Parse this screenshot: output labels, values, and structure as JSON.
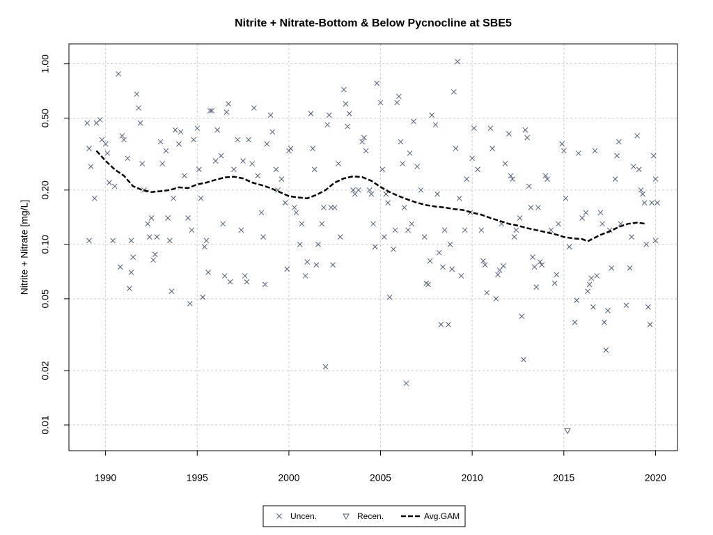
{
  "chart_data": {
    "type": "scatter",
    "title": "Nitrite + Nitrate-Bottom & Below Pycnocline at SBE5",
    "ylabel": "Nitrite + Nitrate [mg/L]",
    "xlim": [
      1988,
      2021.2
    ],
    "ylim": [
      0.0072,
      1.29
    ],
    "ylog": true,
    "grid": true,
    "legend": "bottom",
    "xticks": [
      1990,
      1995,
      2000,
      2005,
      2010,
      2015,
      2020
    ],
    "yticks": [
      0.01,
      0.02,
      0.05,
      {
        "value": 0.1,
        "label": "0.10"
      },
      {
        "value": 0.2,
        "label": "0.20"
      },
      {
        "value": 0.5,
        "label": "0.50"
      },
      {
        "value": 1,
        "label": "1.00"
      }
    ],
    "series": [
      {
        "name": "Uncen.",
        "marker": "x",
        "color": "#4f5b7a",
        "x": [
          1989.0,
          1989.1,
          1989.2,
          1989.1,
          1989.4,
          1989.5,
          1989.7,
          1989.8,
          1990.0,
          1990.1,
          1990.2,
          1990.4,
          1990.5,
          1990.7,
          1990.8,
          1990.9,
          1991.0,
          1991.2,
          1991.3,
          1991.4,
          1991.4,
          1991.5,
          1991.7,
          1991.8,
          1991.9,
          1992.0,
          1992.1,
          1992.3,
          1992.4,
          1992.5,
          1992.6,
          1992.7,
          1992.8,
          1993.0,
          1993.1,
          1993.3,
          1993.4,
          1993.5,
          1993.6,
          1993.7,
          1993.8,
          1994.0,
          1994.1,
          1994.3,
          1994.5,
          1994.6,
          1994.7,
          1994.8,
          1995.0,
          1995.1,
          1995.2,
          1995.3,
          1995.4,
          1995.5,
          1995.6,
          1995.7,
          1995.8,
          1996.0,
          1996.1,
          1996.3,
          1996.4,
          1996.5,
          1996.6,
          1996.7,
          1996.8,
          1997.0,
          1997.2,
          1997.4,
          1997.5,
          1997.6,
          1997.7,
          1997.8,
          1998.0,
          1998.1,
          1998.3,
          1998.5,
          1998.6,
          1998.7,
          1998.8,
          1999.0,
          1999.1,
          1999.3,
          1999.4,
          1999.6,
          1999.8,
          1999.9,
          2000.0,
          2000.1,
          2000.3,
          2000.4,
          2000.6,
          2000.7,
          2000.9,
          2001.0,
          2001.2,
          2001.3,
          2001.4,
          2001.5,
          2001.6,
          2001.8,
          2001.9,
          2002.0,
          2002.1,
          2002.2,
          2002.3,
          2002.4,
          2002.5,
          2002.7,
          2002.8,
          2003.0,
          2003.1,
          2003.2,
          2003.3,
          2003.5,
          2003.6,
          2003.8,
          2004.0,
          2004.1,
          2004.2,
          2004.4,
          2004.5,
          2004.6,
          2004.7,
          2004.8,
          2005.0,
          2005.1,
          2005.2,
          2005.3,
          2005.4,
          2005.5,
          2005.7,
          2005.8,
          2005.9,
          2006.0,
          2006.1,
          2006.2,
          2006.3,
          2006.4,
          2006.5,
          2006.6,
          2006.7,
          2006.8,
          2007.0,
          2007.2,
          2007.4,
          2007.5,
          2007.6,
          2007.7,
          2007.8,
          2008.0,
          2008.1,
          2008.2,
          2008.3,
          2008.4,
          2008.5,
          2008.7,
          2008.8,
          2008.9,
          2009.0,
          2009.1,
          2009.2,
          2009.3,
          2009.4,
          2009.6,
          2009.7,
          2009.9,
          2010.0,
          2010.1,
          2010.3,
          2010.5,
          2010.6,
          2010.7,
          2010.8,
          2011.0,
          2011.1,
          2011.3,
          2011.4,
          2011.5,
          2011.6,
          2011.7,
          2011.8,
          2012.0,
          2012.1,
          2012.2,
          2012.3,
          2012.4,
          2012.6,
          2012.7,
          2012.8,
          2012.9,
          2013.0,
          2013.1,
          2013.2,
          2013.3,
          2013.4,
          2013.5,
          2013.6,
          2013.7,
          2013.8,
          2014.0,
          2014.1,
          2014.3,
          2014.5,
          2014.6,
          2014.7,
          2014.9,
          2015.0,
          2015.1,
          2015.3,
          2015.6,
          2015.7,
          2015.8,
          2016.0,
          2016.2,
          2016.3,
          2016.4,
          2016.5,
          2016.6,
          2016.7,
          2016.8,
          2017.0,
          2017.1,
          2017.2,
          2017.3,
          2017.4,
          2017.5,
          2017.6,
          2017.8,
          2017.9,
          2018.0,
          2018.1,
          2018.4,
          2018.6,
          2018.7,
          2018.8,
          2019.0,
          2019.1,
          2019.2,
          2019.3,
          2019.4,
          2019.5,
          2019.6,
          2019.7,
          2019.8,
          2019.9,
          2020.0,
          2020.1,
          2020.0
        ],
        "values": [
          0.47,
          0.34,
          0.27,
          0.105,
          0.18,
          0.47,
          0.49,
          0.38,
          0.36,
          0.32,
          0.22,
          0.105,
          0.21,
          0.88,
          0.075,
          0.4,
          0.38,
          0.3,
          0.057,
          0.07,
          0.105,
          0.085,
          0.68,
          0.57,
          0.47,
          0.28,
          0.2,
          0.13,
          0.11,
          0.14,
          0.082,
          0.088,
          0.11,
          0.37,
          0.28,
          0.33,
          0.14,
          0.105,
          0.055,
          0.18,
          0.43,
          0.36,
          0.42,
          0.24,
          0.14,
          0.047,
          0.12,
          0.38,
          0.44,
          0.26,
          0.18,
          0.051,
          0.097,
          0.105,
          0.07,
          0.55,
          0.55,
          0.29,
          0.43,
          0.31,
          0.13,
          0.067,
          0.54,
          0.6,
          0.062,
          0.26,
          0.38,
          0.12,
          0.29,
          0.067,
          0.062,
          0.38,
          0.28,
          0.57,
          0.24,
          0.15,
          0.11,
          0.06,
          0.36,
          0.52,
          0.42,
          0.26,
          0.2,
          0.23,
          0.17,
          0.073,
          0.33,
          0.34,
          0.16,
          0.15,
          0.1,
          0.13,
          0.067,
          0.08,
          0.53,
          0.34,
          0.26,
          0.077,
          0.1,
          0.13,
          0.16,
          0.021,
          0.46,
          0.52,
          0.16,
          0.077,
          0.16,
          0.28,
          0.11,
          0.72,
          0.6,
          0.45,
          0.53,
          0.2,
          0.19,
          0.2,
          0.37,
          0.39,
          0.33,
          0.2,
          0.19,
          0.13,
          0.097,
          0.78,
          0.61,
          0.26,
          0.11,
          0.19,
          0.17,
          0.051,
          0.094,
          0.12,
          0.61,
          0.66,
          0.37,
          0.28,
          0.16,
          0.017,
          0.12,
          0.32,
          0.13,
          0.48,
          0.27,
          0.2,
          0.11,
          0.061,
          0.06,
          0.081,
          0.52,
          0.46,
          0.19,
          0.09,
          0.036,
          0.075,
          0.12,
          0.036,
          0.1,
          0.073,
          0.7,
          0.34,
          1.03,
          0.18,
          0.067,
          0.12,
          0.23,
          0.15,
          0.3,
          0.44,
          0.26,
          0.12,
          0.081,
          0.077,
          0.054,
          0.44,
          0.34,
          0.05,
          0.068,
          0.072,
          0.13,
          0.076,
          0.28,
          0.41,
          0.24,
          0.23,
          0.11,
          0.12,
          0.14,
          0.04,
          0.023,
          0.43,
          0.39,
          0.21,
          0.16,
          0.085,
          0.075,
          0.058,
          0.16,
          0.08,
          0.077,
          0.24,
          0.23,
          0.12,
          0.061,
          0.068,
          0.13,
          0.36,
          0.33,
          0.18,
          0.097,
          0.037,
          0.049,
          0.32,
          0.14,
          0.15,
          0.055,
          0.06,
          0.065,
          0.045,
          0.33,
          0.067,
          0.15,
          0.13,
          0.037,
          0.026,
          0.043,
          0.12,
          0.074,
          0.23,
          0.31,
          0.37,
          0.13,
          0.046,
          0.074,
          0.11,
          0.27,
          0.4,
          0.26,
          0.2,
          0.19,
          0.17,
          0.1,
          0.045,
          0.036,
          0.17,
          0.31,
          0.23,
          0.17,
          0.105
        ]
      },
      {
        "name": "Recen.",
        "marker": "triangle-down",
        "color": "#4f5b7a",
        "x": [
          2015.2
        ],
        "values": [
          0.0093
        ]
      },
      {
        "name": "Avg.GAM",
        "marker": "dashed-line",
        "color": "#000000",
        "x": [
          1989.5,
          1990,
          1990.5,
          1991,
          1991.5,
          1992,
          1992.5,
          1993,
          1993.5,
          1994,
          1994.5,
          1995,
          1995.5,
          1996,
          1996.5,
          1997,
          1997.5,
          1998,
          1998.5,
          1999,
          1999.5,
          2000,
          2000.5,
          2001,
          2001.5,
          2002,
          2002.5,
          2003,
          2003.5,
          2004,
          2004.5,
          2005,
          2005.5,
          2006,
          2006.5,
          2007,
          2007.5,
          2008,
          2008.5,
          2009,
          2009.5,
          2010,
          2010.5,
          2011,
          2011.5,
          2012,
          2012.5,
          2013,
          2013.5,
          2014,
          2014.5,
          2015,
          2015.5,
          2016,
          2016.3,
          2016.7,
          2017,
          2017.5,
          2018,
          2018.5,
          2019,
          2019.5
        ],
        "values": [
          0.33,
          0.29,
          0.26,
          0.24,
          0.21,
          0.2,
          0.195,
          0.197,
          0.2,
          0.207,
          0.205,
          0.215,
          0.22,
          0.228,
          0.235,
          0.237,
          0.232,
          0.22,
          0.213,
          0.205,
          0.195,
          0.185,
          0.182,
          0.18,
          0.188,
          0.2,
          0.22,
          0.232,
          0.238,
          0.236,
          0.225,
          0.208,
          0.195,
          0.185,
          0.177,
          0.17,
          0.165,
          0.162,
          0.16,
          0.157,
          0.155,
          0.15,
          0.146,
          0.14,
          0.135,
          0.13,
          0.127,
          0.123,
          0.12,
          0.117,
          0.114,
          0.11,
          0.108,
          0.107,
          0.104,
          0.109,
          0.113,
          0.118,
          0.125,
          0.13,
          0.132,
          0.13
        ]
      }
    ]
  }
}
